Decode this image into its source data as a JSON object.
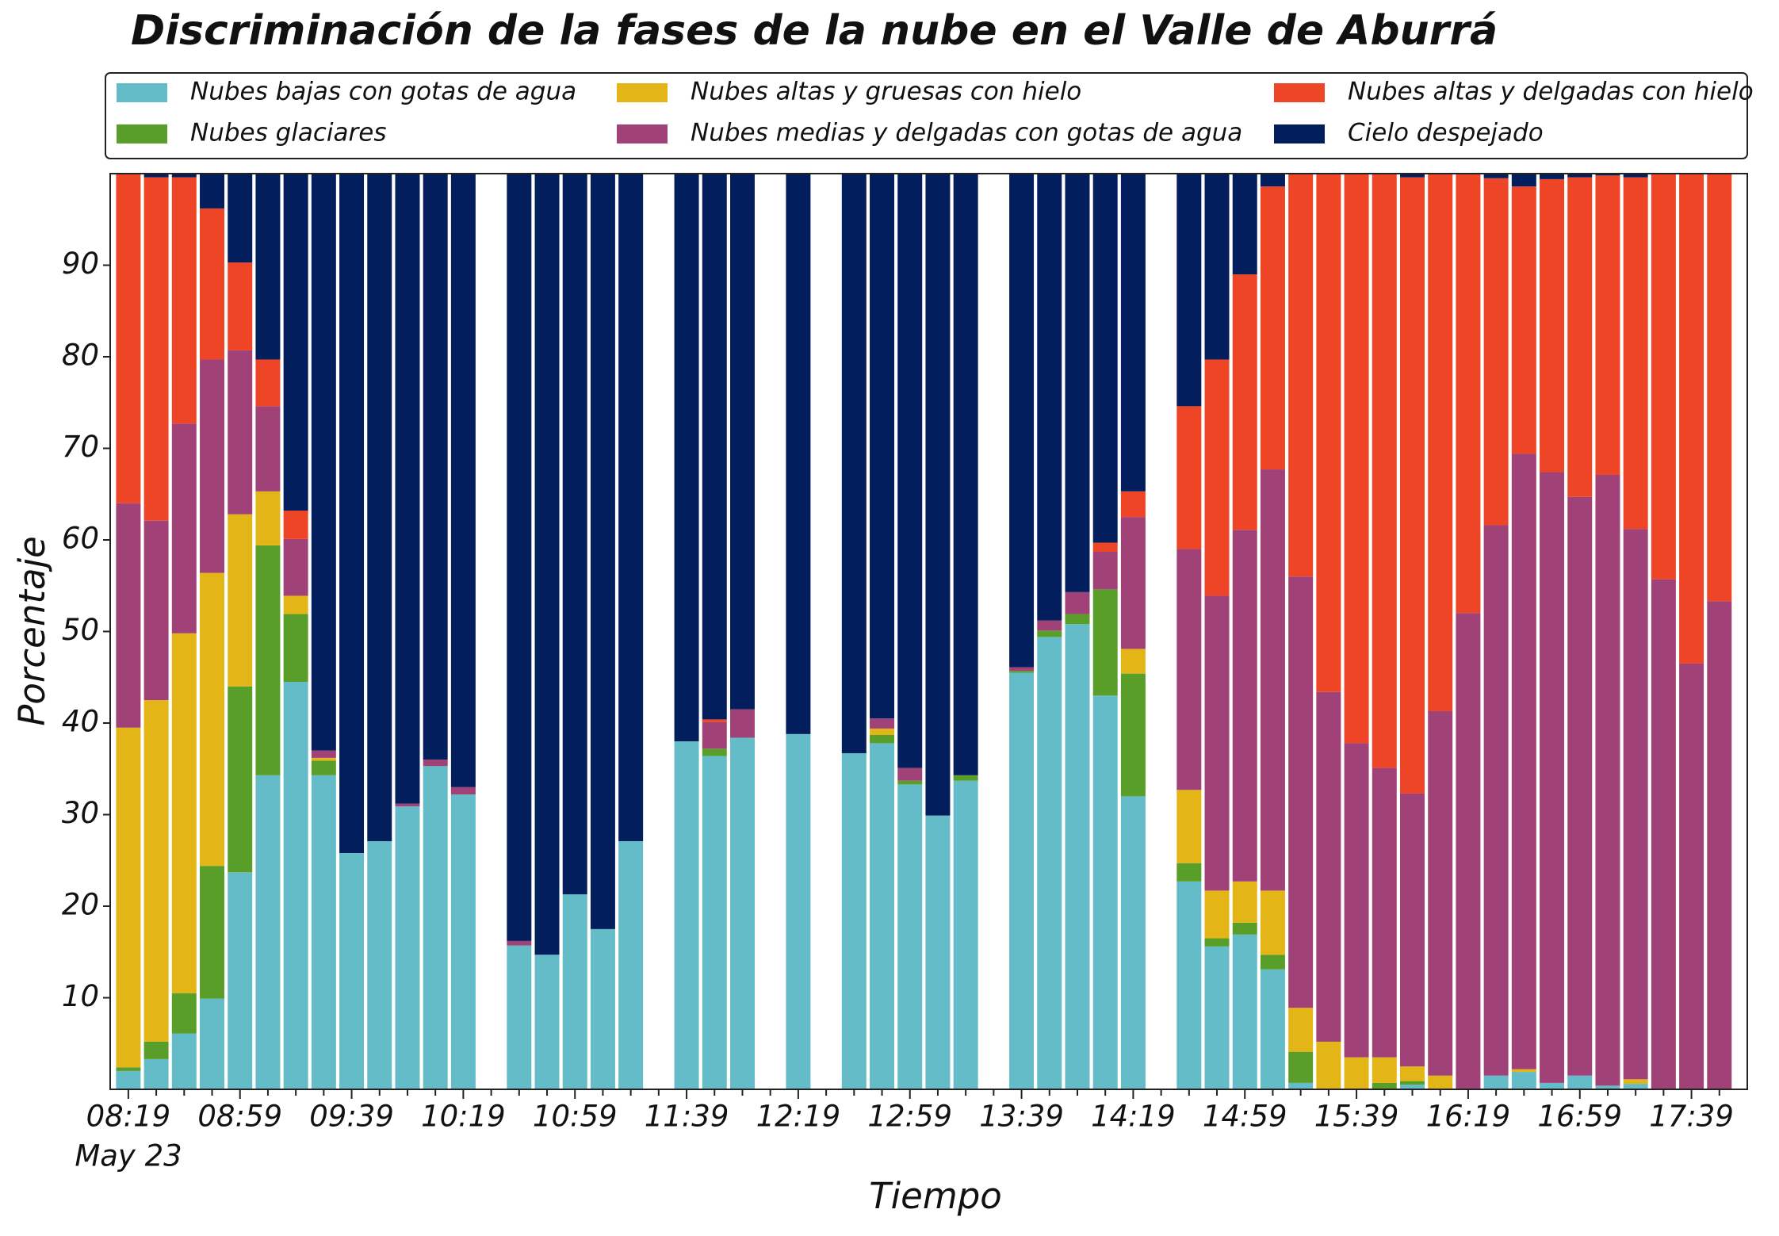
{
  "chart_data": {
    "type": "stacked_bar",
    "title": "Discriminación de la fases de la nube en el Valle de Aburrá",
    "xlabel": "Tiempo",
    "ylabel": "Porcentaje",
    "x_date_label": "May 23",
    "categories": [
      "08:19",
      null,
      null,
      null,
      "08:59",
      null,
      null,
      null,
      "09:39",
      null,
      null,
      null,
      "10:19",
      null,
      null,
      null,
      "10:59",
      null,
      null,
      null,
      "11:39",
      null,
      null,
      null,
      "12:19",
      null,
      null,
      null,
      "12:59",
      null,
      null,
      null,
      "13:39",
      null,
      null,
      null,
      "14:19",
      null,
      null,
      null,
      "14:59",
      null,
      null,
      null,
      "15:39",
      null,
      null,
      null,
      "16:19",
      null,
      null,
      null,
      "16:59",
      null,
      null,
      null,
      "17:39",
      null
    ],
    "ylim": [
      0,
      100
    ],
    "yticks": [
      10,
      20,
      30,
      40,
      50,
      60,
      70,
      80,
      90
    ],
    "legend": "top",
    "series": [
      {
        "name": "Nubes bajas con gotas de agua",
        "color": "#63bcc8",
        "values": [
          2,
          3.3,
          6.1,
          9.9,
          23.7,
          34.3,
          44.5,
          34.3,
          25.8,
          27.1,
          30.9,
          35.3,
          32.2,
          null,
          15.7,
          14.7,
          21.3,
          17.5,
          27.1,
          null,
          38,
          36.4,
          38.4,
          null,
          38.8,
          null,
          36.7,
          37.8,
          33.3,
          29.9,
          33.7,
          null,
          45.5,
          49.4,
          50.8,
          43,
          32,
          null,
          22.7,
          15.6,
          16.9,
          13.1,
          0.7,
          0,
          0,
          0,
          0.5,
          0,
          0,
          1.5,
          1.9,
          0.7,
          1.5,
          0.4,
          0.6,
          0,
          0,
          0
        ]
      },
      {
        "name": "Nubes glaciares",
        "color": "#5a9e2a",
        "values": [
          0.4,
          1.9,
          4.4,
          14.5,
          20.3,
          25.1,
          7.4,
          1.6,
          0,
          0,
          0,
          0,
          0,
          null,
          0,
          0,
          0,
          0,
          0,
          null,
          0,
          0.8,
          0,
          null,
          0,
          null,
          0,
          0.9,
          0.4,
          0,
          0.6,
          null,
          0.2,
          0.7,
          1.1,
          11.6,
          13.4,
          null,
          2,
          0.9,
          1.3,
          1.6,
          3.4,
          0,
          0,
          0.7,
          0.4,
          0,
          0,
          0,
          0,
          0,
          0,
          0,
          0,
          0,
          0,
          0
        ]
      },
      {
        "name": "Nubes altas y gruesas con hielo",
        "color": "#e3b517",
        "values": [
          37.1,
          37.3,
          39.3,
          32,
          18.8,
          5.9,
          2,
          0.3,
          0,
          0,
          0,
          0,
          0,
          null,
          0,
          0,
          0,
          0,
          0,
          null,
          0,
          0,
          0,
          null,
          0,
          null,
          0,
          0.7,
          0,
          0,
          0,
          null,
          0,
          0,
          0,
          0,
          2.7,
          null,
          8,
          5.2,
          4.5,
          7,
          4.8,
          5.2,
          3.5,
          2.8,
          1.6,
          1.5,
          0,
          0,
          0.3,
          0,
          0,
          0,
          0.5,
          0,
          0,
          0
        ]
      },
      {
        "name": "Nubes medias y delgadas con gotas de agua",
        "color": "#a04278",
        "values": [
          24.5,
          19.6,
          22.9,
          23.3,
          17.9,
          9.3,
          6.2,
          0.8,
          0,
          0,
          0.3,
          0.7,
          0.8,
          null,
          0.5,
          0,
          0,
          0,
          0,
          null,
          0,
          2.9,
          3.1,
          null,
          0,
          null,
          0,
          1.1,
          1.4,
          0,
          0,
          null,
          0.4,
          1.1,
          2.4,
          4.1,
          14.4,
          null,
          26.3,
          32.2,
          38.4,
          46,
          47.1,
          38.2,
          34.3,
          31.6,
          29.8,
          39.8,
          52,
          60.1,
          67.2,
          66.7,
          63.2,
          66.7,
          60.1,
          55.7,
          46.5,
          53.3
        ]
      },
      {
        "name": "Nubes altas y delgadas con hielo",
        "color": "#ee4526",
        "values": [
          36,
          37.5,
          26.9,
          16.5,
          9.6,
          5.1,
          3.1,
          0,
          0,
          0,
          0,
          0,
          0,
          null,
          0,
          0,
          0,
          0,
          0,
          null,
          0,
          0.3,
          0,
          null,
          0,
          null,
          0,
          0,
          0,
          0,
          0,
          null,
          0,
          0,
          0,
          1,
          2.8,
          null,
          15.6,
          25.8,
          27.9,
          30.9,
          44,
          56.6,
          62.2,
          64.9,
          67.3,
          58.7,
          48,
          37.9,
          29.2,
          32,
          34.9,
          32.7,
          38.4,
          44.3,
          53.5,
          46.7
        ]
      },
      {
        "name": "Cielo despejado",
        "color": "#031e5d",
        "values": [
          0,
          0.4,
          0.4,
          3.8,
          9.7,
          20.3,
          36.8,
          63,
          74.2,
          72.9,
          68.8,
          64,
          67,
          null,
          83.8,
          85.3,
          78.7,
          82.5,
          72.9,
          null,
          62,
          59.6,
          58.5,
          null,
          61.2,
          null,
          63.3,
          59.5,
          64.9,
          70.1,
          65.7,
          null,
          53.9,
          48.8,
          45.7,
          40.3,
          34.7,
          null,
          25.4,
          20.3,
          11,
          1.4,
          0,
          0,
          0,
          0,
          0.4,
          0,
          0,
          0.5,
          1.4,
          0.6,
          0.4,
          0.2,
          0.4,
          0,
          0,
          0
        ]
      }
    ]
  }
}
